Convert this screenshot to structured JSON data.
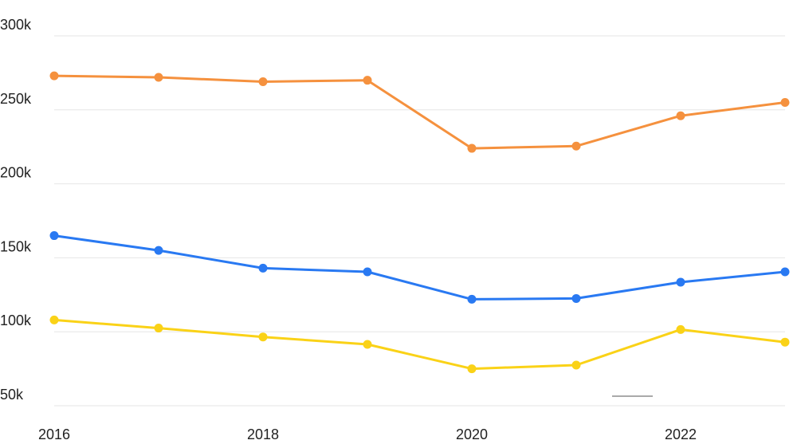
{
  "chart_data": {
    "type": "line",
    "title": "",
    "xlabel": "",
    "ylabel": "",
    "x": [
      2016,
      2017,
      2018,
      2019,
      2020,
      2021,
      2022,
      2023
    ],
    "x_tick_labels": [
      "2016",
      "2018",
      "2020",
      "2022"
    ],
    "y_tick_labels": [
      "300k",
      "250k",
      "200k",
      "150k",
      "100k",
      "50k"
    ],
    "y_ticks": [
      300000,
      250000,
      200000,
      150000,
      100000,
      50000
    ],
    "ylim": [
      50000,
      300000
    ],
    "xlim": [
      2016,
      2023
    ],
    "grid": "horizontal",
    "series": [
      {
        "color": "#F5913E",
        "values": [
          273000,
          272000,
          269000,
          270000,
          224000,
          225500,
          246000,
          255000
        ]
      },
      {
        "color": "#2979F2",
        "values": [
          165000,
          155000,
          143000,
          140500,
          122000,
          122500,
          133500,
          140500
        ]
      },
      {
        "color": "#FAD217",
        "values": [
          108000,
          102500,
          96500,
          91500,
          75000,
          77500,
          101500,
          93000
        ]
      }
    ]
  }
}
